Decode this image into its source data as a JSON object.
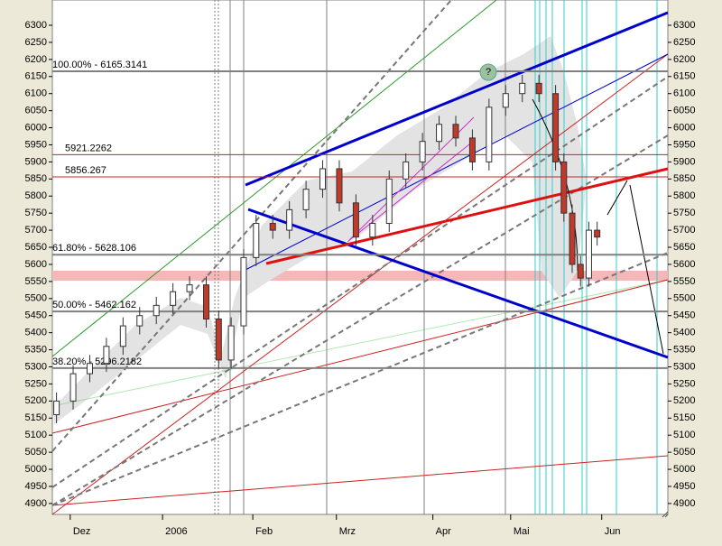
{
  "chart_data": {
    "type": "candlestick",
    "x": [
      1,
      5,
      9,
      13,
      17,
      21,
      25,
      29,
      33,
      37,
      40,
      43,
      46,
      49,
      53,
      57,
      61,
      65,
      69,
      73,
      77,
      81,
      85,
      89,
      93,
      97,
      101,
      105,
      109,
      113,
      117,
      121,
      123,
      125,
      127,
      129,
      131
    ],
    "open": [
      5160,
      5200,
      5280,
      5310,
      5360,
      5420,
      5450,
      5480,
      5520,
      5540,
      5440,
      5320,
      5420,
      5620,
      5720,
      5700,
      5760,
      5820,
      5880,
      5780,
      5680,
      5720,
      5850,
      5900,
      5960,
      6010,
      5970,
      5900,
      6060,
      6100,
      6130,
      6100,
      5900,
      5750,
      5600,
      5560,
      5700
    ],
    "high": [
      5225,
      5305,
      5335,
      5385,
      5445,
      5475,
      5505,
      5545,
      5565,
      5565,
      5465,
      5445,
      5645,
      5745,
      5745,
      5785,
      5845,
      5905,
      5905,
      5805,
      5745,
      5875,
      5925,
      5985,
      6035,
      6035,
      5995,
      6085,
      6125,
      6155,
      6155,
      6125,
      5925,
      5775,
      5625,
      5725,
      5725
    ],
    "low": [
      5135,
      5175,
      5255,
      5285,
      5335,
      5395,
      5425,
      5455,
      5495,
      5415,
      5295,
      5295,
      5395,
      5595,
      5675,
      5675,
      5735,
      5795,
      5755,
      5655,
      5655,
      5695,
      5825,
      5875,
      5935,
      5945,
      5875,
      5875,
      6035,
      6075,
      6075,
      5875,
      5725,
      5575,
      5535,
      5535,
      5655
    ],
    "close": [
      5200,
      5280,
      5310,
      5360,
      5420,
      5450,
      5480,
      5520,
      5540,
      5440,
      5320,
      5420,
      5620,
      5720,
      5700,
      5760,
      5820,
      5880,
      5780,
      5680,
      5720,
      5850,
      5900,
      5960,
      6010,
      5970,
      5900,
      6060,
      6100,
      6130,
      6100,
      5900,
      5750,
      5600,
      5560,
      5700,
      5680
    ],
    "up_color": "#ffffff",
    "down_color": "#c0392b",
    "xlim": [
      0,
      148
    ],
    "xticks": [
      {
        "value": 4.3,
        "label": "Dez"
      },
      {
        "value": 26.5,
        "label": "2006"
      },
      {
        "value": 48.2,
        "label": "Feb"
      },
      {
        "value": 68.3,
        "label": "Mrz"
      },
      {
        "value": 91.5,
        "label": "Apr"
      },
      {
        "value": 110.2,
        "label": "Mai"
      },
      {
        "value": 132.1,
        "label": "Jun"
      }
    ],
    "ylim": [
      4868,
      6374
    ],
    "yticks": [
      4900,
      4950,
      5000,
      5050,
      5100,
      5150,
      5200,
      5250,
      5300,
      5350,
      5400,
      5450,
      5500,
      5550,
      5600,
      5650,
      5700,
      5750,
      5800,
      5850,
      5900,
      5950,
      6000,
      6050,
      6100,
      6150,
      6200,
      6250,
      6300
    ],
    "levels": [
      {
        "label": "100.00% - 6165.3141",
        "value": 6165.3141,
        "color": "#808080"
      },
      {
        "label": "61.80% - 5628.106",
        "value": 5628.106,
        "color": "#808080"
      },
      {
        "label": "50.00% - 5462.162",
        "value": 5462.162,
        "color": "#808080"
      },
      {
        "label": "38.20% - 5296.2182",
        "value": 5296.2182,
        "color": "#808080"
      },
      {
        "label": "5921.2262",
        "value": 5921.2262,
        "color": "#cc2222"
      },
      {
        "label": "5856.267",
        "value": 5856.267,
        "color": "#cc2222"
      }
    ],
    "marker_label": "?"
  }
}
